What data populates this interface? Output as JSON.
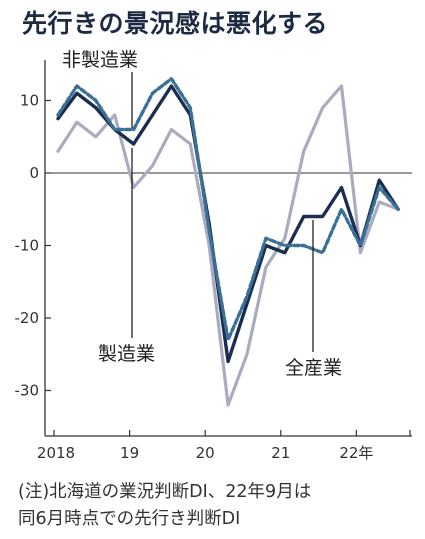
{
  "title": "先行きの景況感は悪化する",
  "note_line1": "(注)北海道の業況判断DI、22年9月は",
  "note_line2": "同6月時点での先行き判断DI",
  "chart_data": {
    "type": "line",
    "x_quarters": [
      "2018Q1",
      "2018Q2",
      "2018Q3",
      "2018Q4",
      "2019Q1",
      "2019Q2",
      "2019Q3",
      "2019Q4",
      "2020Q1",
      "2020Q2",
      "2020Q3",
      "2020Q4",
      "2021Q1",
      "2021Q2",
      "2021Q3",
      "2021Q4",
      "2022Q1",
      "2022Q2",
      "2022Q3"
    ],
    "x_tick_labels": [
      "2018",
      "19",
      "20",
      "21",
      "22年"
    ],
    "ylim": [
      -37,
      18
    ],
    "y_ticks": [
      10,
      0,
      -10,
      -20,
      -30
    ],
    "series": [
      {
        "name": "非製造業",
        "color": "#3a6f96",
        "style": "dashed",
        "values": [
          8,
          12,
          10,
          6,
          6,
          11,
          13,
          9,
          -8,
          -23,
          -17,
          -9,
          -10,
          -10,
          -11,
          -5,
          -10,
          -2,
          -5
        ]
      },
      {
        "name": "製造業",
        "color": "#1a2e4f",
        "style": "solid",
        "values": [
          7.5,
          11,
          9,
          6,
          4,
          8,
          12,
          8,
          -7,
          -26,
          -18,
          -10,
          -11,
          -6,
          -6,
          -2,
          -10,
          -1,
          -5
        ]
      },
      {
        "name": "全産業",
        "color": "#a9acbf",
        "style": "solid",
        "values": [
          3,
          7,
          5,
          8,
          -2,
          1,
          6,
          4,
          -10,
          -32,
          -25,
          -13,
          -9,
          3,
          9,
          12,
          -11,
          -4,
          -5
        ]
      }
    ],
    "series_labels": {
      "non_mfg": "非製造業",
      "mfg": "製造業",
      "all": "全産業"
    }
  },
  "colors": {
    "non_mfg": "#3a6f96",
    "mfg": "#1a2e4f",
    "all": "#a9acbf",
    "axis": "#333333"
  }
}
